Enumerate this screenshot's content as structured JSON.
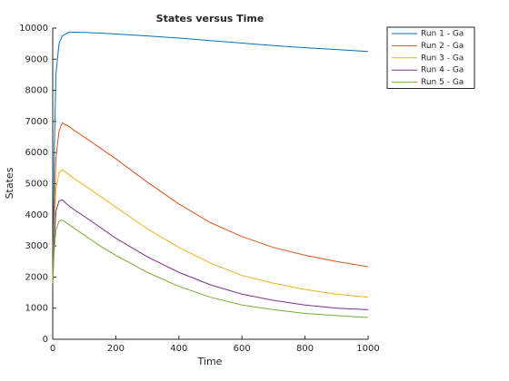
{
  "chart_data": {
    "type": "line",
    "title": "States versus Time",
    "x_label": "Time",
    "y_label": "States",
    "x": [
      0,
      5,
      10,
      20,
      30,
      50,
      70,
      100,
      150,
      200,
      300,
      400,
      500,
      600,
      700,
      800,
      900,
      1000
    ],
    "series": [
      {
        "name": "Run 1 - Ga",
        "color": "#0072bd",
        "values": [
          1800,
          6000,
          8500,
          9500,
          9750,
          9860,
          9870,
          9860,
          9840,
          9810,
          9750,
          9680,
          9600,
          9520,
          9440,
          9370,
          9310,
          9250
        ]
      },
      {
        "name": "Run 2 - Ga",
        "color": "#d95319",
        "values": [
          1800,
          4000,
          5800,
          6700,
          6950,
          6850,
          6700,
          6500,
          6150,
          5800,
          5050,
          4350,
          3750,
          3300,
          2950,
          2700,
          2500,
          2330
        ]
      },
      {
        "name": "Run 3 - Ga",
        "color": "#edb120",
        "values": [
          1800,
          3600,
          4800,
          5350,
          5450,
          5300,
          5150,
          4950,
          4600,
          4250,
          3550,
          2950,
          2450,
          2050,
          1800,
          1600,
          1450,
          1350
        ]
      },
      {
        "name": "Run 4 - Ga",
        "color": "#7e2f8e",
        "values": [
          1800,
          3200,
          4100,
          4450,
          4480,
          4300,
          4150,
          3950,
          3600,
          3250,
          2650,
          2150,
          1750,
          1450,
          1250,
          1100,
          1000,
          950
        ]
      },
      {
        "name": "Run 5 - Ga",
        "color": "#77ac30",
        "values": [
          1800,
          2900,
          3500,
          3800,
          3830,
          3700,
          3550,
          3350,
          3000,
          2700,
          2150,
          1700,
          1350,
          1100,
          950,
          830,
          760,
          700
        ]
      }
    ],
    "xlim": [
      0,
      1000
    ],
    "xticks": [
      0,
      200,
      400,
      600,
      800,
      1000
    ],
    "ylim": [
      0,
      10000
    ],
    "yticks": [
      0,
      1000,
      2000,
      3000,
      4000,
      5000,
      6000,
      7000,
      8000,
      9000,
      10000
    ],
    "legend": "top-right"
  }
}
